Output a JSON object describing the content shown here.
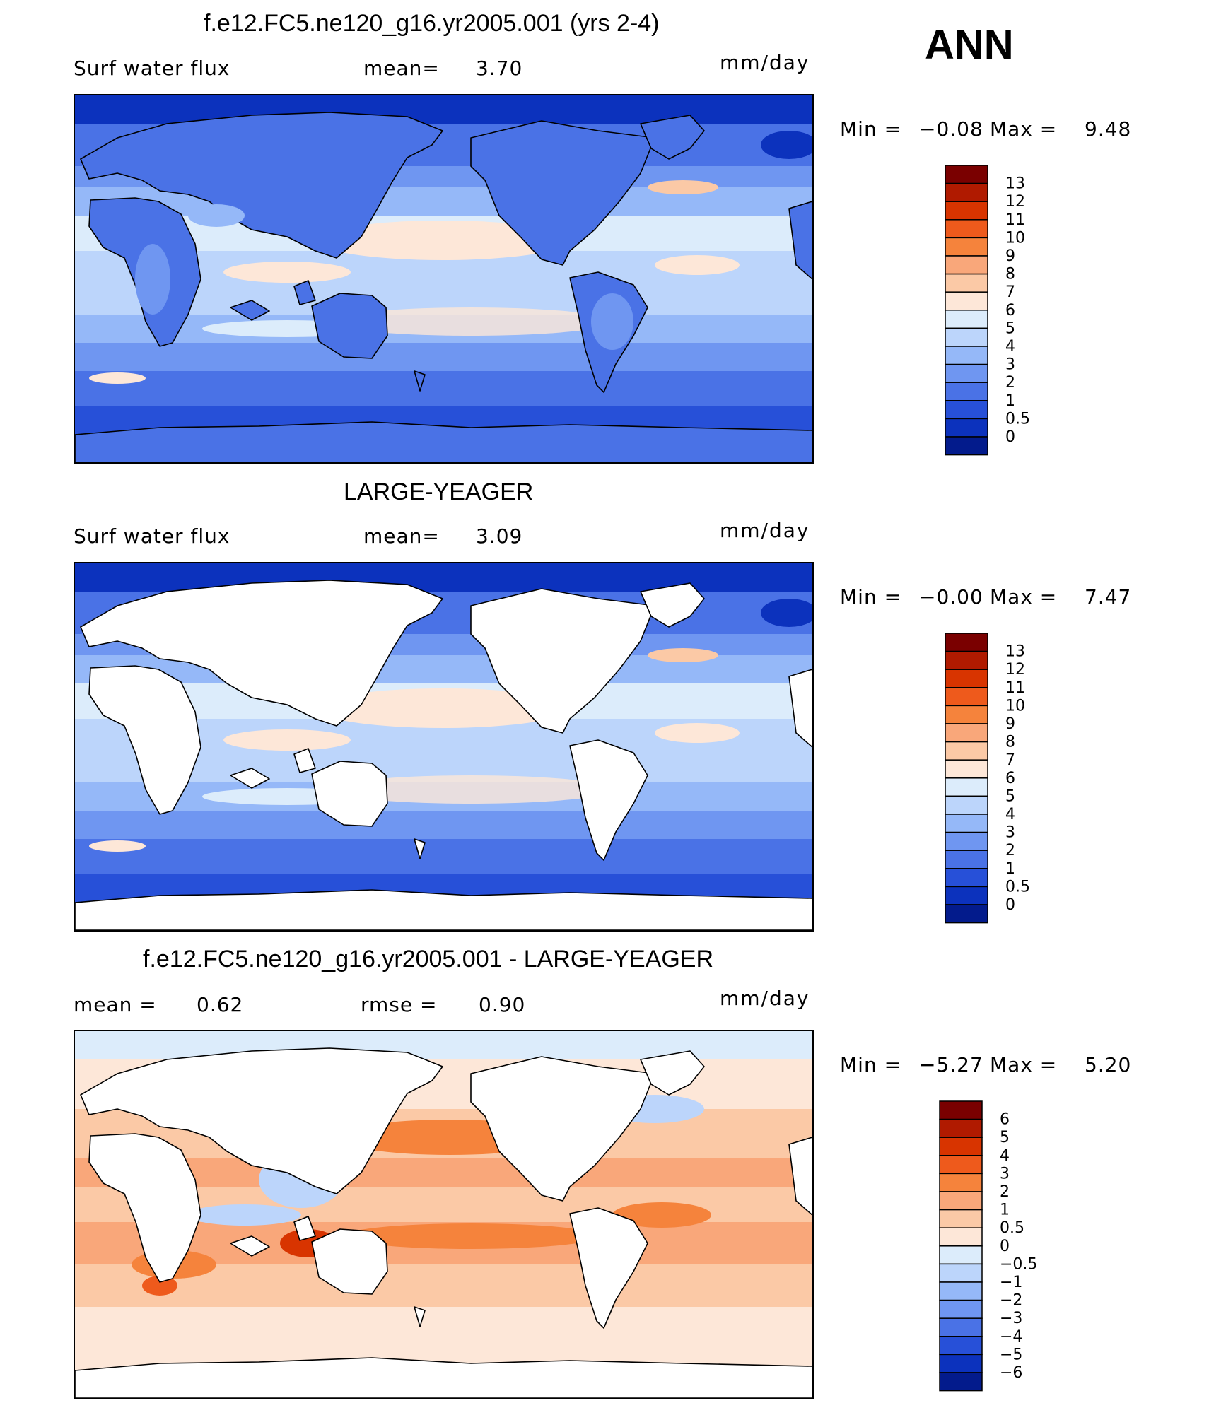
{
  "season": "ANN",
  "panels": [
    {
      "id": "model",
      "title": "f.e12.FC5.ne120_g16.yr2005.001 (yrs 2-4)",
      "variable": "Surf water flux",
      "stat1_label": "mean=",
      "stat1_value": "3.70",
      "stat2_label": "",
      "stat2_value": "",
      "units": "mm/day",
      "min_label": "Min =",
      "min_value": "−0.08",
      "max_label": "Max =",
      "max_value": "9.48",
      "scale": "abs",
      "land_mask": false,
      "colorbar": {
        "labels": [
          "13",
          "12",
          "11",
          "10",
          "9",
          "8",
          "7",
          "6",
          "5",
          "4",
          "3",
          "2",
          "1",
          "0.5",
          "0"
        ],
        "colors": [
          "#7a0000",
          "#b01a00",
          "#d83400",
          "#ee5a1c",
          "#f5833c",
          "#f9a77a",
          "#fbc9a6",
          "#fde7d8",
          "#dcecfb",
          "#bcd5fb",
          "#95b8f8",
          "#6f96f1",
          "#4a72e6",
          "#2750d8",
          "#0c32bd",
          "#031b8c"
        ]
      }
    },
    {
      "id": "obs",
      "title": "LARGE-YEAGER",
      "variable": "Surf water flux",
      "stat1_label": "mean=",
      "stat1_value": "3.09",
      "stat2_label": "",
      "stat2_value": "",
      "units": "mm/day",
      "min_label": "Min =",
      "min_value": "−0.00",
      "max_label": "Max =",
      "max_value": "7.47",
      "scale": "abs",
      "land_mask": true,
      "colorbar": {
        "labels": [
          "13",
          "12",
          "11",
          "10",
          "9",
          "8",
          "7",
          "6",
          "5",
          "4",
          "3",
          "2",
          "1",
          "0.5",
          "0"
        ],
        "colors": [
          "#7a0000",
          "#b01a00",
          "#d83400",
          "#ee5a1c",
          "#f5833c",
          "#f9a77a",
          "#fbc9a6",
          "#fde7d8",
          "#dcecfb",
          "#bcd5fb",
          "#95b8f8",
          "#6f96f1",
          "#4a72e6",
          "#2750d8",
          "#0c32bd",
          "#031b8c"
        ]
      }
    },
    {
      "id": "diff",
      "title": "f.e12.FC5.ne120_g16.yr2005.001 - LARGE-YEAGER",
      "variable": "",
      "stat1_label": "mean =",
      "stat1_value": "0.62",
      "stat2_label": "rmse =",
      "stat2_value": "0.90",
      "units": "mm/day",
      "min_label": "Min =",
      "min_value": "−5.27",
      "max_label": "Max =",
      "max_value": "5.20",
      "scale": "diff",
      "land_mask": true,
      "colorbar": {
        "labels": [
          "6",
          "5",
          "4",
          "3",
          "2",
          "1",
          "0.5",
          "0",
          "−0.5",
          "−1",
          "−2",
          "−3",
          "−4",
          "−5",
          "−6"
        ],
        "colors": [
          "#7a0000",
          "#b01a00",
          "#d83400",
          "#ee5a1c",
          "#f5833c",
          "#f9a77a",
          "#fbc9a6",
          "#fde7d8",
          "#dcecfb",
          "#bcd5fb",
          "#95b8f8",
          "#6f96f1",
          "#4a72e6",
          "#2750d8",
          "#0c32bd",
          "#031b8c"
        ]
      }
    }
  ]
}
